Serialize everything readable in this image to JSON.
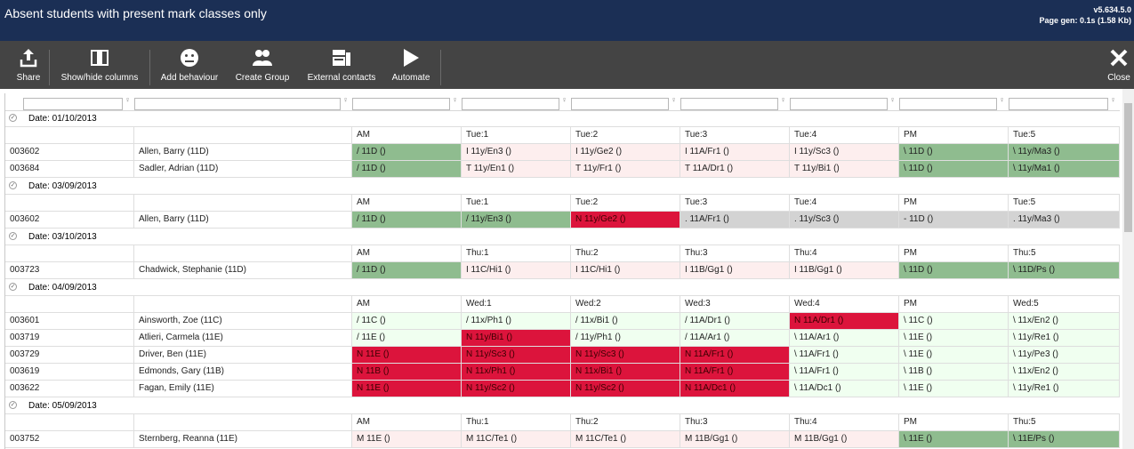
{
  "header": {
    "title": "Absent students with present mark classes only",
    "version": "v5.634.5.0",
    "page_gen": "Page gen: 0.1s (1.58 Kb)"
  },
  "toolbar": {
    "share": "Share",
    "show_hide": "Show/hide columns",
    "add_behaviour": "Add behaviour",
    "create_group": "Create Group",
    "external_contacts": "External contacts",
    "automate": "Automate",
    "close": "Close"
  },
  "colors": {
    "green": "#8fbc8f",
    "pink": "#fdeeee",
    "red": "#dc143c",
    "grey": "#d3d3d3",
    "light_green": "#f0fff0",
    "header_bg": "#1b2f55",
    "toolbar_bg": "#444444"
  },
  "groups": [
    {
      "date": "Date: 01/10/2013",
      "header": [
        "",
        "",
        "AM",
        "Tue:1",
        "Tue:2",
        "Tue:3",
        "Tue:4",
        "PM",
        "Tue:5"
      ],
      "rows": [
        {
          "cells": [
            "003602",
            "Allen, Barry (11D)",
            "/ 11D ()",
            "I 11y/En3 ()",
            "I 11y/Ge2 ()",
            "I 11A/Fr1 ()",
            "I 11y/Sc3 ()",
            "\\ 11D ()",
            "\\ 11y/Ma3 ()"
          ],
          "colors": [
            "",
            "",
            "green",
            "pink",
            "pink",
            "pink",
            "pink",
            "green",
            "green"
          ]
        },
        {
          "cells": [
            "003684",
            "Sadler, Adrian (11D)",
            "/ 11D ()",
            "T 11y/En1 ()",
            "T 11y/Fr1 ()",
            "T 11A/Dr1 ()",
            "T 11y/Bi1 ()",
            "\\ 11D ()",
            "\\ 11y/Ma1 ()"
          ],
          "colors": [
            "",
            "",
            "green",
            "pink",
            "pink",
            "pink",
            "pink",
            "green",
            "green"
          ]
        }
      ]
    },
    {
      "date": "Date: 03/09/2013",
      "header": [
        "",
        "",
        "AM",
        "Tue:1",
        "Tue:2",
        "Tue:3",
        "Tue:4",
        "PM",
        "Tue:5"
      ],
      "rows": [
        {
          "cells": [
            "003602",
            "Allen, Barry (11D)",
            "/ 11D ()",
            "/ 11y/En3 ()",
            "N 11y/Ge2 ()",
            ". 11A/Fr1 ()",
            ". 11y/Sc3 ()",
            "- 11D ()",
            ". 11y/Ma3 ()"
          ],
          "colors": [
            "",
            "",
            "green",
            "green",
            "red",
            "grey",
            "grey",
            "grey",
            "grey"
          ]
        }
      ]
    },
    {
      "date": "Date: 03/10/2013",
      "header": [
        "",
        "",
        "AM",
        "Thu:1",
        "Thu:2",
        "Thu:3",
        "Thu:4",
        "PM",
        "Thu:5"
      ],
      "rows": [
        {
          "cells": [
            "003723",
            "Chadwick, Stephanie (11D)",
            "/ 11D ()",
            "I 11C/Hi1 ()",
            "I 11C/Hi1 ()",
            "I 11B/Gg1 ()",
            "I 11B/Gg1 ()",
            "\\ 11D ()",
            "\\ 11D/Ps ()"
          ],
          "colors": [
            "",
            "",
            "green",
            "pink",
            "pink",
            "pink",
            "pink",
            "green",
            "green"
          ]
        }
      ]
    },
    {
      "date": "Date: 04/09/2013",
      "header": [
        "",
        "",
        "AM",
        "Wed:1",
        "Wed:2",
        "Wed:3",
        "Wed:4",
        "PM",
        "Wed:5"
      ],
      "rows": [
        {
          "cells": [
            "003601",
            "Ainsworth, Zoe (11C)",
            "/ 11C ()",
            "/ 11x/Ph1 ()",
            "/ 11x/Bi1 ()",
            "/ 11A/Dr1 ()",
            "N 11A/Dr1 ()",
            "\\ 11C ()",
            "\\ 11x/En2 ()"
          ],
          "colors": [
            "",
            "",
            "lgreen",
            "lgreen",
            "lgreen",
            "lgreen",
            "red",
            "lgreen",
            "lgreen"
          ]
        },
        {
          "cells": [
            "003719",
            "Atlieri, Carmela (11E)",
            "/ 11E ()",
            "N 11y/Bi1 ()",
            "/ 11y/Ph1 ()",
            "/ 11A/Ar1 ()",
            "\\ 11A/Ar1 ()",
            "\\ 11E ()",
            "\\ 11y/Re1 ()"
          ],
          "colors": [
            "",
            "",
            "lgreen",
            "red",
            "lgreen",
            "lgreen",
            "lgreen",
            "lgreen",
            "lgreen"
          ]
        },
        {
          "cells": [
            "003729",
            "Driver, Ben (11E)",
            "N 11E ()",
            "N 11y/Sc3 ()",
            "N 11y/Sc3 ()",
            "N 11A/Fr1 ()",
            "\\ 11A/Fr1 ()",
            "\\ 11E ()",
            "\\ 11y/Pe3 ()"
          ],
          "colors": [
            "",
            "",
            "red",
            "red",
            "red",
            "red",
            "lgreen",
            "lgreen",
            "lgreen"
          ]
        },
        {
          "cells": [
            "003619",
            "Edmonds, Gary (11B)",
            "N 11B ()",
            "N 11x/Ph1 ()",
            "N 11x/Bi1 ()",
            "N 11A/Fr1 ()",
            "\\ 11A/Fr1 ()",
            "\\ 11B ()",
            "\\ 11x/En2 ()"
          ],
          "colors": [
            "",
            "",
            "red",
            "red",
            "red",
            "red",
            "lgreen",
            "lgreen",
            "lgreen"
          ]
        },
        {
          "cells": [
            "003622",
            "Fagan, Emily (11E)",
            "N 11E ()",
            "N 11y/Sc2 ()",
            "N 11y/Sc2 ()",
            "N 11A/Dc1 ()",
            "\\ 11A/Dc1 ()",
            "\\ 11E ()",
            "\\ 11y/Re1 ()"
          ],
          "colors": [
            "",
            "",
            "red",
            "red",
            "red",
            "red",
            "lgreen",
            "lgreen",
            "lgreen"
          ]
        }
      ]
    },
    {
      "date": "Date: 05/09/2013",
      "header": [
        "",
        "",
        "AM",
        "Thu:1",
        "Thu:2",
        "Thu:3",
        "Thu:4",
        "PM",
        "Thu:5"
      ],
      "rows": [
        {
          "cells": [
            "003752",
            "Sternberg, Reanna (11E)",
            "M 11E ()",
            "M 11C/Te1 ()",
            "M 11C/Te1 ()",
            "M 11B/Gg1 ()",
            "M 11B/Gg1 ()",
            "\\ 11E ()",
            "\\ 11E/Ps ()"
          ],
          "colors": [
            "",
            "",
            "pink",
            "pink",
            "pink",
            "pink",
            "pink",
            "green",
            "green"
          ]
        }
      ]
    }
  ]
}
